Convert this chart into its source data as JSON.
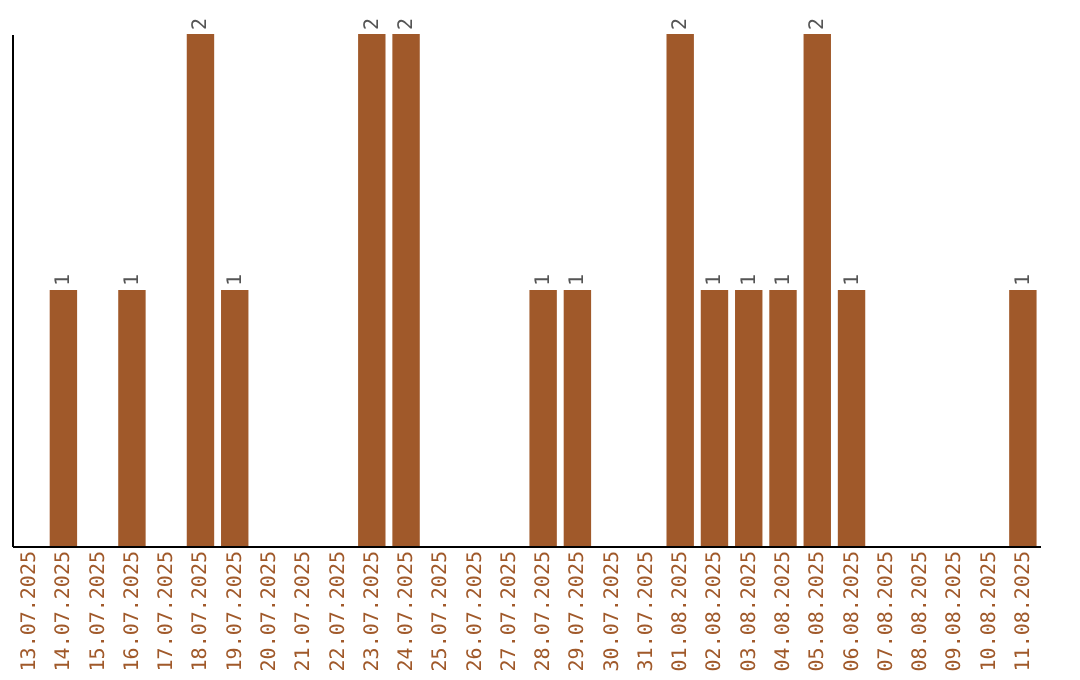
{
  "chart_data": {
    "type": "bar",
    "categories": [
      "13.07.2025",
      "14.07.2025",
      "15.07.2025",
      "16.07.2025",
      "17.07.2025",
      "18.07.2025",
      "19.07.2025",
      "20.07.2025",
      "21.07.2025",
      "22.07.2025",
      "23.07.2025",
      "24.07.2025",
      "25.07.2025",
      "26.07.2025",
      "27.07.2025",
      "28.07.2025",
      "29.07.2025",
      "30.07.2025",
      "31.07.2025",
      "01.08.2025",
      "02.08.2025",
      "03.08.2025",
      "04.08.2025",
      "05.08.2025",
      "06.08.2025",
      "07.08.2025",
      "08.08.2025",
      "09.08.2025",
      "10.08.2025",
      "11.08.2025"
    ],
    "values": [
      0,
      1,
      0,
      1,
      0,
      2,
      1,
      0,
      0,
      0,
      2,
      2,
      0,
      0,
      0,
      1,
      1,
      0,
      0,
      2,
      1,
      1,
      1,
      2,
      1,
      0,
      0,
      0,
      0,
      1
    ],
    "value_labels": [
      null,
      "1",
      null,
      "1",
      null,
      "2",
      "1",
      null,
      null,
      null,
      "2",
      "2",
      null,
      null,
      null,
      "1",
      "1",
      null,
      null,
      "2",
      "1",
      "1",
      "1",
      "2",
      "1",
      null,
      null,
      null,
      null,
      "1"
    ],
    "color": "#a0592a",
    "tick_labels": "x"
  }
}
